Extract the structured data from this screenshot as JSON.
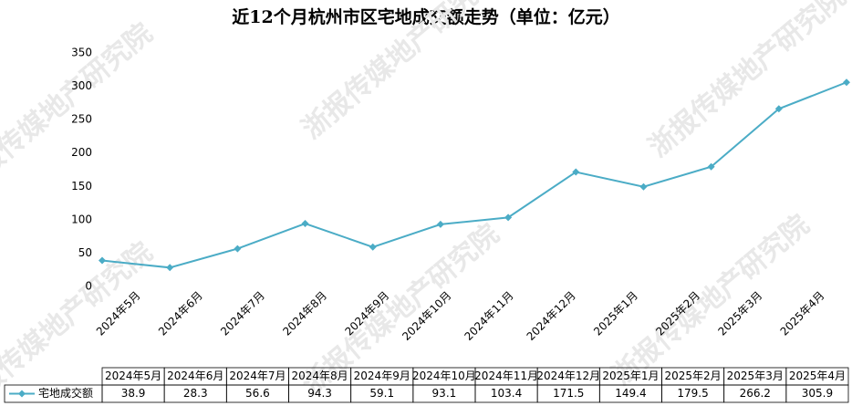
{
  "chart_data": {
    "type": "line",
    "title": "近12个月杭州市区宅地成交额走势（单位：亿元）",
    "watermark": "浙报传媒地产研究院",
    "categories": [
      "2024年5月",
      "2024年6月",
      "2024年7月",
      "2024年8月",
      "2024年9月",
      "2024年10月",
      "2024年11月",
      "2024年12月",
      "2025年1月",
      "2025年2月",
      "2025年3月",
      "2025年4月"
    ],
    "series": [
      {
        "name": "宅地成交额",
        "color": "#4bacc6",
        "values": [
          38.9,
          28.3,
          56.6,
          94.3,
          59.1,
          93.1,
          103.4,
          171.5,
          149.4,
          179.5,
          266.2,
          305.9
        ]
      }
    ],
    "ylim": [
      0,
      350
    ],
    "yticks": [
      0,
      50,
      100,
      150,
      200,
      250,
      300,
      350
    ],
    "grid": false
  }
}
